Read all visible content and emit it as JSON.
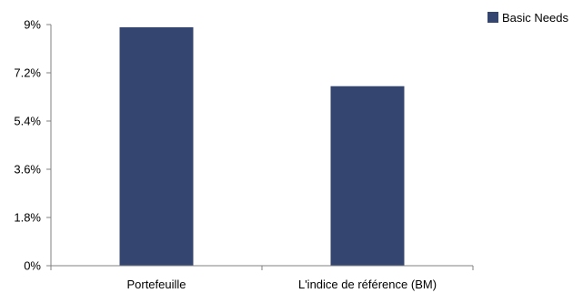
{
  "chart_data": {
    "type": "bar",
    "categories": [
      "Portefeuille",
      "L'indice de référence (BM)"
    ],
    "series": [
      {
        "name": "Basic Needs",
        "values": [
          8.9,
          6.7
        ]
      }
    ],
    "ylim": [
      0,
      9
    ],
    "yticks": [
      0,
      1.8,
      3.6,
      5.4,
      7.2,
      9
    ],
    "ytick_labels": [
      "0%",
      "1.8%",
      "3.6%",
      "5.4%",
      "7.2%",
      "9%"
    ],
    "grid": false,
    "legend": "top-right",
    "colors": {
      "series": "#34466f",
      "axis": "#808080"
    }
  }
}
